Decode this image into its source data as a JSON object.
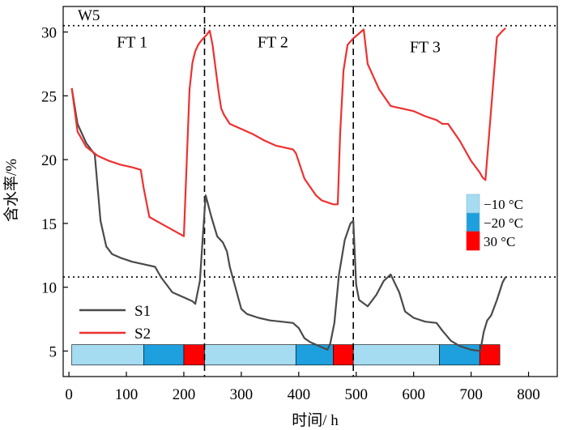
{
  "chart_data": {
    "type": "line",
    "title": "",
    "panel_label": "W5",
    "xlabel": "时间/ h",
    "ylabel": "含水率/%",
    "xlim": [
      -10,
      850
    ],
    "ylim": [
      3,
      32
    ],
    "xticks": [
      0,
      100,
      200,
      300,
      400,
      500,
      600,
      700,
      800
    ],
    "yticks": [
      5,
      10,
      15,
      20,
      25,
      30
    ],
    "cycle_labels": [
      {
        "text": "FT 1",
        "x": 110,
        "y": 28.8
      },
      {
        "text": "FT 2",
        "x": 355,
        "y": 28.8
      },
      {
        "text": "FT 3",
        "x": 620,
        "y": 28.4
      }
    ],
    "cycle_boundaries": [
      236,
      495
    ],
    "reference_lines": [
      30.5,
      10.8
    ],
    "temperature_bar": {
      "ylim": [
        3.9,
        5.5
      ],
      "segments": [
        {
          "start": 5,
          "end": 130,
          "temp": "-10 °C"
        },
        {
          "start": 130,
          "end": 200,
          "temp": "-20 °C"
        },
        {
          "start": 200,
          "end": 236,
          "temp": "30 °C"
        },
        {
          "start": 236,
          "end": 395,
          "temp": "-10 °C"
        },
        {
          "start": 395,
          "end": 460,
          "temp": "-20 °C"
        },
        {
          "start": 460,
          "end": 495,
          "temp": "30 °C"
        },
        {
          "start": 495,
          "end": 645,
          "temp": "-10 °C"
        },
        {
          "start": 645,
          "end": 715,
          "temp": "-20 °C"
        },
        {
          "start": 715,
          "end": 750,
          "temp": "30 °C"
        }
      ]
    },
    "temperature_legend": [
      {
        "label": "−10 °C",
        "color": "#a6dcf2"
      },
      {
        "label": "−20 °C",
        "color": "#1e9fde"
      },
      {
        "label": "30 °C",
        "color": "#ff0000"
      }
    ],
    "series": [
      {
        "name": "S1",
        "color": "#4a4a4a",
        "x": [
          5,
          15,
          30,
          45,
          55,
          65,
          75,
          90,
          110,
          130,
          150,
          160,
          180,
          200,
          215,
          220,
          228,
          233,
          238,
          248,
          258,
          268,
          275,
          280,
          300,
          310,
          330,
          350,
          370,
          390,
          400,
          410,
          420,
          440,
          450,
          455,
          462,
          470,
          480,
          490,
          495,
          500,
          505,
          520,
          535,
          548,
          560,
          575,
          585,
          600,
          620,
          640,
          650,
          665,
          680,
          700,
          716,
          722,
          728,
          735,
          745,
          755,
          760
        ],
        "y": [
          25.6,
          22.8,
          21.3,
          20.4,
          15.2,
          13.2,
          12.6,
          12.3,
          12.0,
          11.8,
          11.6,
          10.8,
          9.6,
          9.2,
          8.9,
          8.7,
          10.5,
          14.0,
          17.2,
          15.5,
          14.0,
          13.5,
          12.8,
          11.6,
          8.3,
          7.9,
          7.6,
          7.4,
          7.3,
          7.2,
          6.8,
          6.0,
          5.7,
          5.3,
          5.1,
          5.6,
          7.2,
          11.0,
          13.7,
          15.0,
          15.2,
          10.2,
          9.0,
          8.5,
          9.4,
          10.5,
          11.0,
          9.6,
          8.1,
          7.6,
          7.3,
          7.2,
          6.6,
          5.8,
          5.4,
          5.1,
          5.0,
          6.5,
          7.4,
          7.8,
          9.0,
          10.4,
          10.8
        ]
      },
      {
        "name": "S2",
        "color": "#ee3030",
        "x": [
          5,
          15,
          30,
          50,
          70,
          90,
          110,
          125,
          130,
          140,
          160,
          180,
          200,
          205,
          210,
          215,
          220,
          225,
          230,
          240,
          245,
          250,
          260,
          265,
          270,
          280,
          300,
          320,
          340,
          360,
          380,
          390,
          395,
          410,
          430,
          440,
          460,
          468,
          472,
          478,
          485,
          495,
          508,
          513,
          520,
          540,
          560,
          580,
          600,
          620,
          640,
          650,
          660,
          680,
          700,
          715,
          720,
          725,
          735,
          745,
          755,
          760
        ],
        "y": [
          25.6,
          22.2,
          21.0,
          20.3,
          19.9,
          19.6,
          19.4,
          19.2,
          17.8,
          15.5,
          15.0,
          14.5,
          14.0,
          19.8,
          25.5,
          27.6,
          28.5,
          29.0,
          29.3,
          29.8,
          30.1,
          29.0,
          25.5,
          24.0,
          23.5,
          22.8,
          22.4,
          22.0,
          21.5,
          21.1,
          20.9,
          20.8,
          20.5,
          18.5,
          17.2,
          16.8,
          16.5,
          16.5,
          22.0,
          27.0,
          29.0,
          29.5,
          30.0,
          30.2,
          27.5,
          25.5,
          24.2,
          24.0,
          23.8,
          23.4,
          23.1,
          22.8,
          22.8,
          21.5,
          19.9,
          19.0,
          18.6,
          18.4,
          24.0,
          29.6,
          30.1,
          30.3
        ]
      }
    ]
  }
}
